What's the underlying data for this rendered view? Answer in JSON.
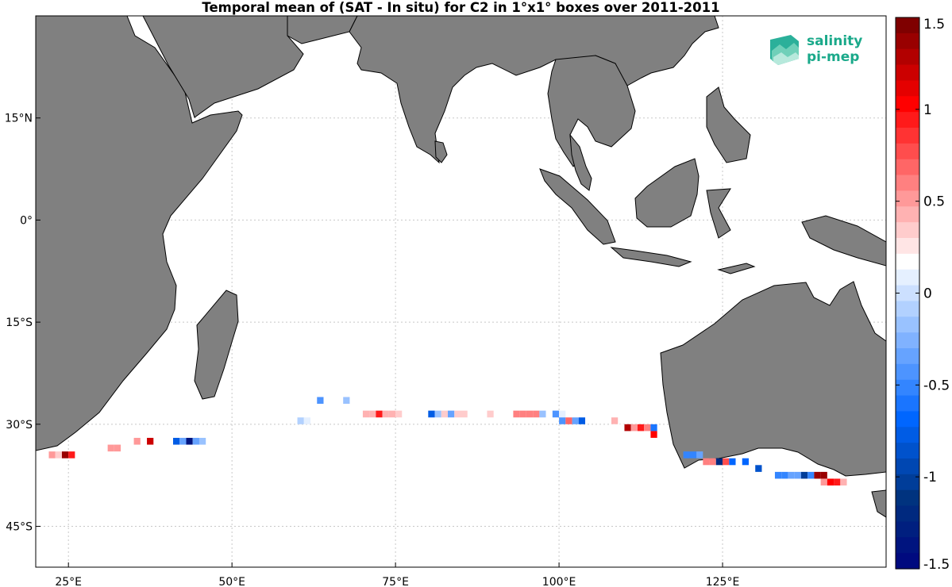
{
  "title": "Temporal mean of (SAT - In situ) for C2 in 1°x1° boxes over 2011-2011",
  "logo": {
    "line1": "salinity",
    "line2": "pi-mep",
    "color": "#1aa98a"
  },
  "colors": {
    "land": "#808080",
    "ocean": "#ffffff",
    "grid": "#c8c8c8"
  },
  "map_extent": {
    "lon": [
      20,
      150
    ],
    "lat": [
      -51,
      30
    ]
  },
  "lon_ticks": [
    {
      "value": 25,
      "label": "25°E"
    },
    {
      "value": 50,
      "label": "50°E"
    },
    {
      "value": 75,
      "label": "75°E"
    },
    {
      "value": 100,
      "label": "100°E"
    },
    {
      "value": 125,
      "label": "125°E"
    }
  ],
  "lat_ticks": [
    {
      "value": 15,
      "label": "15°N"
    },
    {
      "value": 0,
      "label": "0°"
    },
    {
      "value": -15,
      "label": "15°S"
    },
    {
      "value": -30,
      "label": "30°S"
    },
    {
      "value": -45,
      "label": "45°S"
    }
  ],
  "colorbar": {
    "min": -1.5,
    "max": 1.5,
    "tick_labels": [
      "1.5",
      "1",
      "0.5",
      "0",
      "-0.5",
      "-1",
      "-1.5"
    ],
    "tick_values": [
      1.5,
      1,
      0.5,
      0,
      -0.5,
      -1,
      -1.5
    ],
    "colors_top_to_bottom": [
      "#7f0000",
      "#990000",
      "#b20000",
      "#cc0000",
      "#e50000",
      "#ff0000",
      "#ff1a1a",
      "#ff3333",
      "#ff4d4d",
      "#ff6666",
      "#ff8080",
      "#ff9999",
      "#ffb2b2",
      "#ffcccc",
      "#ffe5e5",
      "#ffffff",
      "#e5f0ff",
      "#cce0ff",
      "#b2d1ff",
      "#99c2ff",
      "#80b2ff",
      "#66a3ff",
      "#4d94ff",
      "#3385ff",
      "#1a75ff",
      "#0066ff",
      "#005ce5",
      "#0052cc",
      "#0047b2",
      "#003d99",
      "#00337f",
      "#00297f",
      "#001f7f",
      "#00147f",
      "#000a7f"
    ]
  },
  "chart_data": {
    "type": "heatmap",
    "title": "Temporal mean of (SAT - In situ) for C2 in 1°x1° boxes over 2011-2011",
    "value_range": [
      -1.5,
      1.5
    ],
    "cells": [
      {
        "lon": 22.5,
        "lat": -34.5,
        "v": 0.5
      },
      {
        "lon": 23.5,
        "lat": -34.5,
        "v": 0.3
      },
      {
        "lon": 24.5,
        "lat": -34.5,
        "v": 1.4
      },
      {
        "lon": 25.5,
        "lat": -34.5,
        "v": 0.9
      },
      {
        "lon": 26.5,
        "lat": -34.5,
        "v": 0.2
      },
      {
        "lon": 31.5,
        "lat": -33.5,
        "v": 0.5
      },
      {
        "lon": 32.5,
        "lat": -33.5,
        "v": 0.5
      },
      {
        "lon": 35.5,
        "lat": -32.5,
        "v": 0.5
      },
      {
        "lon": 37.5,
        "lat": -32.5,
        "v": 1.2
      },
      {
        "lon": 41.5,
        "lat": -32.5,
        "v": -0.8
      },
      {
        "lon": 42.5,
        "lat": -32.5,
        "v": -0.3
      },
      {
        "lon": 43.5,
        "lat": -32.5,
        "v": -1.4
      },
      {
        "lon": 44.5,
        "lat": -32.5,
        "v": -0.3
      },
      {
        "lon": 45.5,
        "lat": -32.5,
        "v": -0.2
      },
      {
        "lon": 60.5,
        "lat": -29.5,
        "v": -0.1
      },
      {
        "lon": 61.5,
        "lat": -29.5,
        "v": 0.1
      },
      {
        "lon": 62.5,
        "lat": -28.5,
        "v": 0.2
      },
      {
        "lon": 63.5,
        "lat": -26.5,
        "v": -0.4
      },
      {
        "lon": 67.5,
        "lat": -26.5,
        "v": -0.2
      },
      {
        "lon": 70.5,
        "lat": -28.5,
        "v": 0.4
      },
      {
        "lon": 71.5,
        "lat": -28.5,
        "v": 0.4
      },
      {
        "lon": 72.5,
        "lat": -28.5,
        "v": 0.9
      },
      {
        "lon": 73.5,
        "lat": -28.5,
        "v": 0.4
      },
      {
        "lon": 74.5,
        "lat": -28.5,
        "v": 0.4
      },
      {
        "lon": 75.5,
        "lat": -28.5,
        "v": 0.3
      },
      {
        "lon": 76.5,
        "lat": -28.5,
        "v": 0.2
      },
      {
        "lon": 80.5,
        "lat": -28.5,
        "v": -0.8
      },
      {
        "lon": 81.5,
        "lat": -28.5,
        "v": -0.2
      },
      {
        "lon": 82.5,
        "lat": -28.5,
        "v": 0.3
      },
      {
        "lon": 83.5,
        "lat": -28.5,
        "v": -0.3
      },
      {
        "lon": 84.5,
        "lat": -28.5,
        "v": 0.3
      },
      {
        "lon": 85.5,
        "lat": -28.5,
        "v": 0.3
      },
      {
        "lon": 87.5,
        "lat": -28.5,
        "v": 0.2
      },
      {
        "lon": 89.5,
        "lat": -28.5,
        "v": 0.3
      },
      {
        "lon": 93.5,
        "lat": -28.5,
        "v": 0.6
      },
      {
        "lon": 94.5,
        "lat": -28.5,
        "v": 0.6
      },
      {
        "lon": 95.5,
        "lat": -28.5,
        "v": 0.6
      },
      {
        "lon": 96.5,
        "lat": -28.5,
        "v": 0.6
      },
      {
        "lon": 97.5,
        "lat": -28.5,
        "v": -0.2
      },
      {
        "lon": 98.5,
        "lat": -28.5,
        "v": 0.2
      },
      {
        "lon": 99.5,
        "lat": -28.5,
        "v": -0.4
      },
      {
        "lon": 100.5,
        "lat": -28.5,
        "v": 0.1
      },
      {
        "lon": 100.5,
        "lat": -29.5,
        "v": -0.4
      },
      {
        "lon": 101.5,
        "lat": -29.5,
        "v": 0.7
      },
      {
        "lon": 102.5,
        "lat": -29.5,
        "v": -0.3
      },
      {
        "lon": 103.5,
        "lat": -29.5,
        "v": -0.8
      },
      {
        "lon": 108.5,
        "lat": -29.5,
        "v": 0.4
      },
      {
        "lon": 108.5,
        "lat": -30.5,
        "v": 0.2
      },
      {
        "lon": 109.5,
        "lat": -30.5,
        "v": 0.2
      },
      {
        "lon": 110.5,
        "lat": -30.5,
        "v": 1.3
      },
      {
        "lon": 111.5,
        "lat": -30.5,
        "v": 0.5
      },
      {
        "lon": 112.5,
        "lat": -30.5,
        "v": 0.9
      },
      {
        "lon": 113.5,
        "lat": -30.5,
        "v": 0.6
      },
      {
        "lon": 114.5,
        "lat": -30.5,
        "v": -0.6
      },
      {
        "lon": 114.5,
        "lat": -31.5,
        "v": 1.0
      },
      {
        "lon": 114.5,
        "lat": -32.5,
        "v": 0.2
      },
      {
        "lon": 119.5,
        "lat": -34.5,
        "v": -0.5
      },
      {
        "lon": 120.5,
        "lat": -34.5,
        "v": -0.5
      },
      {
        "lon": 121.5,
        "lat": -34.5,
        "v": -0.3
      },
      {
        "lon": 122.5,
        "lat": -35.5,
        "v": 0.6
      },
      {
        "lon": 123.5,
        "lat": -35.5,
        "v": 0.6
      },
      {
        "lon": 124.5,
        "lat": -35.5,
        "v": -1.2
      },
      {
        "lon": 125.5,
        "lat": -35.5,
        "v": 0.8
      },
      {
        "lon": 126.5,
        "lat": -35.5,
        "v": -0.7
      },
      {
        "lon": 128.5,
        "lat": -35.5,
        "v": -0.7
      },
      {
        "lon": 130.5,
        "lat": -36.5,
        "v": -0.9
      },
      {
        "lon": 133.5,
        "lat": -37.5,
        "v": -0.5
      },
      {
        "lon": 134.5,
        "lat": -37.5,
        "v": -0.5
      },
      {
        "lon": 135.5,
        "lat": -37.5,
        "v": -0.3
      },
      {
        "lon": 136.5,
        "lat": -37.5,
        "v": -0.3
      },
      {
        "lon": 137.5,
        "lat": -37.5,
        "v": -1.0
      },
      {
        "lon": 138.5,
        "lat": -37.5,
        "v": -0.5
      },
      {
        "lon": 139.5,
        "lat": -37.5,
        "v": 1.4
      },
      {
        "lon": 140.5,
        "lat": -37.5,
        "v": 1.4
      },
      {
        "lon": 140.5,
        "lat": -38.5,
        "v": 0.5
      },
      {
        "lon": 141.5,
        "lat": -38.5,
        "v": 1.0
      },
      {
        "lon": 142.5,
        "lat": -38.5,
        "v": 0.9
      },
      {
        "lon": 143.5,
        "lat": -38.5,
        "v": 0.4
      }
    ]
  }
}
